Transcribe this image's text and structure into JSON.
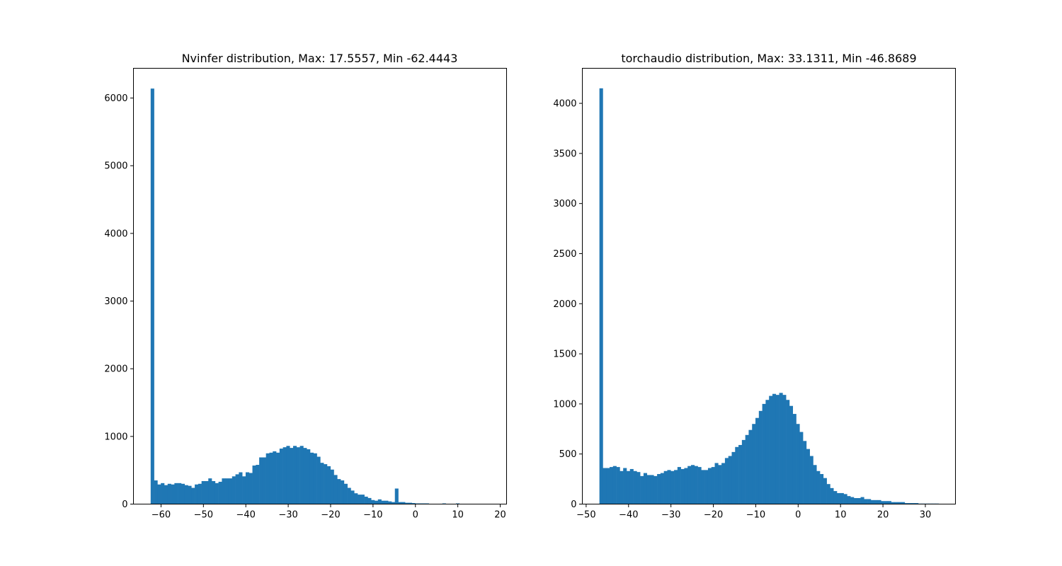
{
  "figure": {
    "background": "#ffffff",
    "bar_color": "#1f77b4"
  },
  "chart_data": [
    {
      "type": "bar",
      "title": "Nvinfer distribution, Max: 17.5557, Min -62.4443",
      "xlabel": "",
      "ylabel": "",
      "xlim": [
        -66.5,
        21.5
      ],
      "ylim": [
        0,
        6440
      ],
      "xticks": [
        -60,
        -50,
        -40,
        -30,
        -20,
        -10,
        0,
        10,
        20
      ],
      "xtick_labels": [
        "−60",
        "−50",
        "−40",
        "−30",
        "−20",
        "−10",
        "0",
        "10",
        "20"
      ],
      "yticks": [
        0,
        1000,
        2000,
        3000,
        4000,
        5000,
        6000
      ],
      "ytick_labels": [
        "0",
        "1000",
        "2000",
        "3000",
        "4000",
        "5000",
        "6000"
      ],
      "grid": false,
      "legend": "none",
      "bins": {
        "min": -62.4443,
        "max": 17.5557,
        "count": 100
      },
      "counts": [
        6140,
        350,
        290,
        310,
        280,
        300,
        290,
        310,
        310,
        300,
        280,
        270,
        240,
        290,
        300,
        340,
        340,
        380,
        340,
        310,
        330,
        380,
        380,
        380,
        410,
        440,
        470,
        410,
        470,
        460,
        570,
        580,
        690,
        690,
        750,
        760,
        780,
        760,
        820,
        840,
        860,
        830,
        860,
        840,
        860,
        830,
        810,
        760,
        750,
        700,
        610,
        590,
        560,
        510,
        430,
        370,
        350,
        300,
        240,
        200,
        160,
        140,
        140,
        110,
        90,
        60,
        50,
        70,
        50,
        50,
        40,
        30,
        230,
        30,
        30,
        20,
        20,
        15,
        10,
        10,
        10,
        10,
        5,
        5,
        5,
        5,
        10,
        5,
        5,
        5,
        10,
        5,
        5,
        0,
        0,
        0,
        0,
        0,
        0,
        0
      ]
    },
    {
      "type": "bar",
      "title": "torchaudio distribution, Max: 33.1311, Min -46.8689",
      "xlabel": "",
      "ylabel": "",
      "xlim": [
        -50.9,
        37.1
      ],
      "ylim": [
        0,
        4350
      ],
      "xticks": [
        -50,
        -40,
        -30,
        -20,
        -10,
        0,
        10,
        20,
        30
      ],
      "xtick_labels": [
        "−50",
        "−40",
        "−30",
        "−20",
        "−10",
        "0",
        "10",
        "20",
        "30"
      ],
      "yticks": [
        0,
        500,
        1000,
        1500,
        2000,
        2500,
        3000,
        3500,
        4000
      ],
      "ytick_labels": [
        "0",
        "500",
        "1000",
        "1500",
        "2000",
        "2500",
        "3000",
        "3500",
        "4000"
      ],
      "grid": false,
      "legend": "none",
      "bins": {
        "min": -46.8689,
        "max": 33.1311,
        "count": 100
      },
      "counts": [
        4150,
        360,
        360,
        370,
        380,
        370,
        330,
        360,
        330,
        350,
        330,
        320,
        280,
        310,
        290,
        290,
        280,
        300,
        310,
        330,
        340,
        330,
        340,
        370,
        350,
        360,
        380,
        390,
        380,
        370,
        340,
        340,
        360,
        370,
        410,
        390,
        410,
        460,
        480,
        520,
        570,
        590,
        640,
        690,
        740,
        800,
        860,
        930,
        1000,
        1040,
        1080,
        1100,
        1090,
        1110,
        1090,
        1040,
        980,
        900,
        800,
        720,
        630,
        550,
        480,
        390,
        330,
        300,
        260,
        200,
        160,
        130,
        110,
        110,
        100,
        80,
        70,
        60,
        60,
        70,
        50,
        50,
        40,
        40,
        40,
        30,
        30,
        30,
        20,
        20,
        20,
        20,
        10,
        10,
        10,
        10,
        5,
        5,
        5,
        5,
        5,
        5
      ]
    }
  ]
}
